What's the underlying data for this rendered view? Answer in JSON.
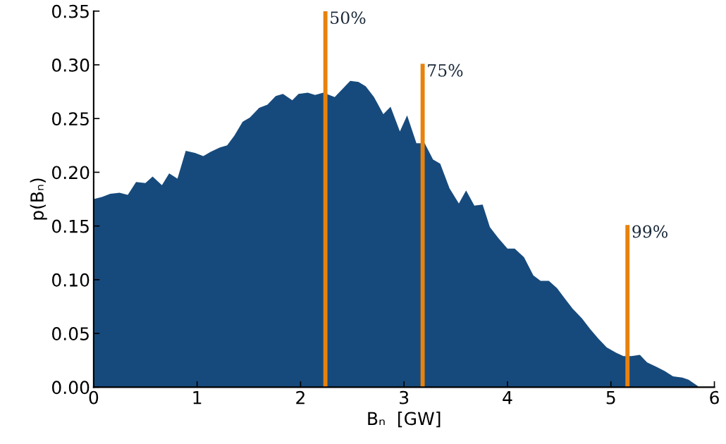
{
  "chart_data": {
    "type": "area",
    "xlabel": "Bₙ  [GW]",
    "ylabel": "p(Bₙ)",
    "annotations": [
      {
        "text": "50%",
        "x": 2.24,
        "y": 0.35
      },
      {
        "text": "75%",
        "x": 3.18,
        "y": 0.301
      },
      {
        "text": "99%",
        "x": 5.16,
        "y": 0.151
      }
    ],
    "xlim": [
      0,
      6
    ],
    "xticks": [
      0,
      1,
      2,
      3,
      4,
      5,
      6
    ],
    "ylim": [
      0,
      0.35
    ],
    "yticks": [
      {
        "value": 0,
        "label": "0.00"
      },
      {
        "value": 0.05,
        "label": "0.05"
      },
      {
        "value": 0.1,
        "label": "0.10"
      },
      {
        "value": 0.15,
        "label": "0.15"
      },
      {
        "value": 0.2,
        "label": "0.20"
      },
      {
        "value": 0.25,
        "label": "0.25"
      },
      {
        "value": 0.3,
        "label": "0.30"
      },
      {
        "value": 0.35,
        "label": "0.35"
      }
    ],
    "grid": false,
    "legend": false,
    "series": [
      {
        "color": "#174a7c",
        "x": [
          0,
          0.08,
          0.16,
          0.25,
          0.33,
          0.41,
          0.5,
          0.57,
          0.66,
          0.73,
          0.81,
          0.89,
          0.98,
          1.06,
          1.13,
          1.22,
          1.29,
          1.36,
          1.44,
          1.51,
          1.6,
          1.68,
          1.76,
          1.83,
          1.92,
          1.98,
          2.07,
          2.14,
          2.22,
          2.33,
          2.41,
          2.48,
          2.56,
          2.63,
          2.71,
          2.8,
          2.87,
          2.96,
          3.03,
          3.12,
          3.2,
          3.28,
          3.35,
          3.44,
          3.53,
          3.6,
          3.68,
          3.76,
          3.83,
          3.91,
          4.0,
          4.07,
          4.16,
          4.25,
          4.32,
          4.4,
          4.48,
          4.55,
          4.63,
          4.72,
          4.8,
          4.88,
          4.96,
          5.05,
          5.12,
          5.2,
          5.28,
          5.35,
          5.44,
          5.52,
          5.6,
          5.69,
          5.75,
          5.84
        ],
        "values": [
          0.175,
          0.177,
          0.18,
          0.181,
          0.179,
          0.191,
          0.19,
          0.196,
          0.188,
          0.199,
          0.194,
          0.22,
          0.218,
          0.215,
          0.219,
          0.223,
          0.225,
          0.234,
          0.247,
          0.251,
          0.26,
          0.263,
          0.271,
          0.273,
          0.267,
          0.273,
          0.274,
          0.272,
          0.274,
          0.27,
          0.278,
          0.285,
          0.284,
          0.28,
          0.27,
          0.254,
          0.261,
          0.238,
          0.253,
          0.227,
          0.227,
          0.212,
          0.208,
          0.185,
          0.171,
          0.183,
          0.169,
          0.17,
          0.149,
          0.139,
          0.129,
          0.129,
          0.121,
          0.104,
          0.099,
          0.099,
          0.092,
          0.083,
          0.073,
          0.064,
          0.054,
          0.045,
          0.037,
          0.032,
          0.029,
          0.029,
          0.03,
          0.023,
          0.019,
          0.015,
          0.01,
          0.009,
          0.007,
          0.001
        ]
      },
      {
        "type": "bar",
        "color": "#e8820c",
        "x": [
          2.24,
          3.18,
          5.16
        ],
        "values": [
          0.35,
          0.301,
          0.151
        ]
      }
    ]
  }
}
